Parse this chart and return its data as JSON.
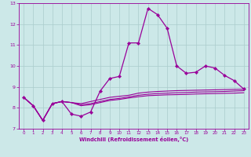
{
  "xlabel": "Windchill (Refroidissement éolien,°C)",
  "xlim": [
    -0.5,
    23.5
  ],
  "ylim": [
    7,
    13
  ],
  "yticks": [
    7,
    8,
    9,
    10,
    11,
    12,
    13
  ],
  "xticks": [
    0,
    1,
    2,
    3,
    4,
    5,
    6,
    7,
    8,
    9,
    10,
    11,
    12,
    13,
    14,
    15,
    16,
    17,
    18,
    19,
    20,
    21,
    22,
    23
  ],
  "bg_color": "#cce8e8",
  "grid_color": "#aacccc",
  "line_color": "#990099",
  "lines": [
    [
      8.5,
      8.1,
      7.4,
      8.2,
      8.3,
      7.7,
      7.6,
      7.8,
      8.8,
      9.4,
      9.5,
      11.1,
      11.1,
      12.75,
      12.45,
      11.8,
      10.0,
      9.65,
      9.7,
      10.0,
      9.9,
      9.55,
      9.3,
      8.9
    ],
    [
      8.5,
      8.1,
      7.4,
      8.2,
      8.3,
      8.25,
      8.2,
      8.3,
      8.4,
      8.5,
      8.55,
      8.6,
      8.7,
      8.75,
      8.78,
      8.8,
      8.82,
      8.83,
      8.84,
      8.85,
      8.86,
      8.87,
      8.88,
      8.89
    ],
    [
      8.5,
      8.1,
      7.4,
      8.2,
      8.3,
      8.25,
      8.15,
      8.2,
      8.3,
      8.4,
      8.45,
      8.52,
      8.6,
      8.65,
      8.68,
      8.7,
      8.72,
      8.73,
      8.75,
      8.76,
      8.77,
      8.78,
      8.8,
      8.82
    ],
    [
      8.5,
      8.1,
      7.4,
      8.2,
      8.3,
      8.25,
      8.1,
      8.15,
      8.25,
      8.35,
      8.4,
      8.47,
      8.53,
      8.58,
      8.6,
      8.62,
      8.63,
      8.64,
      8.66,
      8.67,
      8.68,
      8.69,
      8.7,
      8.72
    ]
  ]
}
